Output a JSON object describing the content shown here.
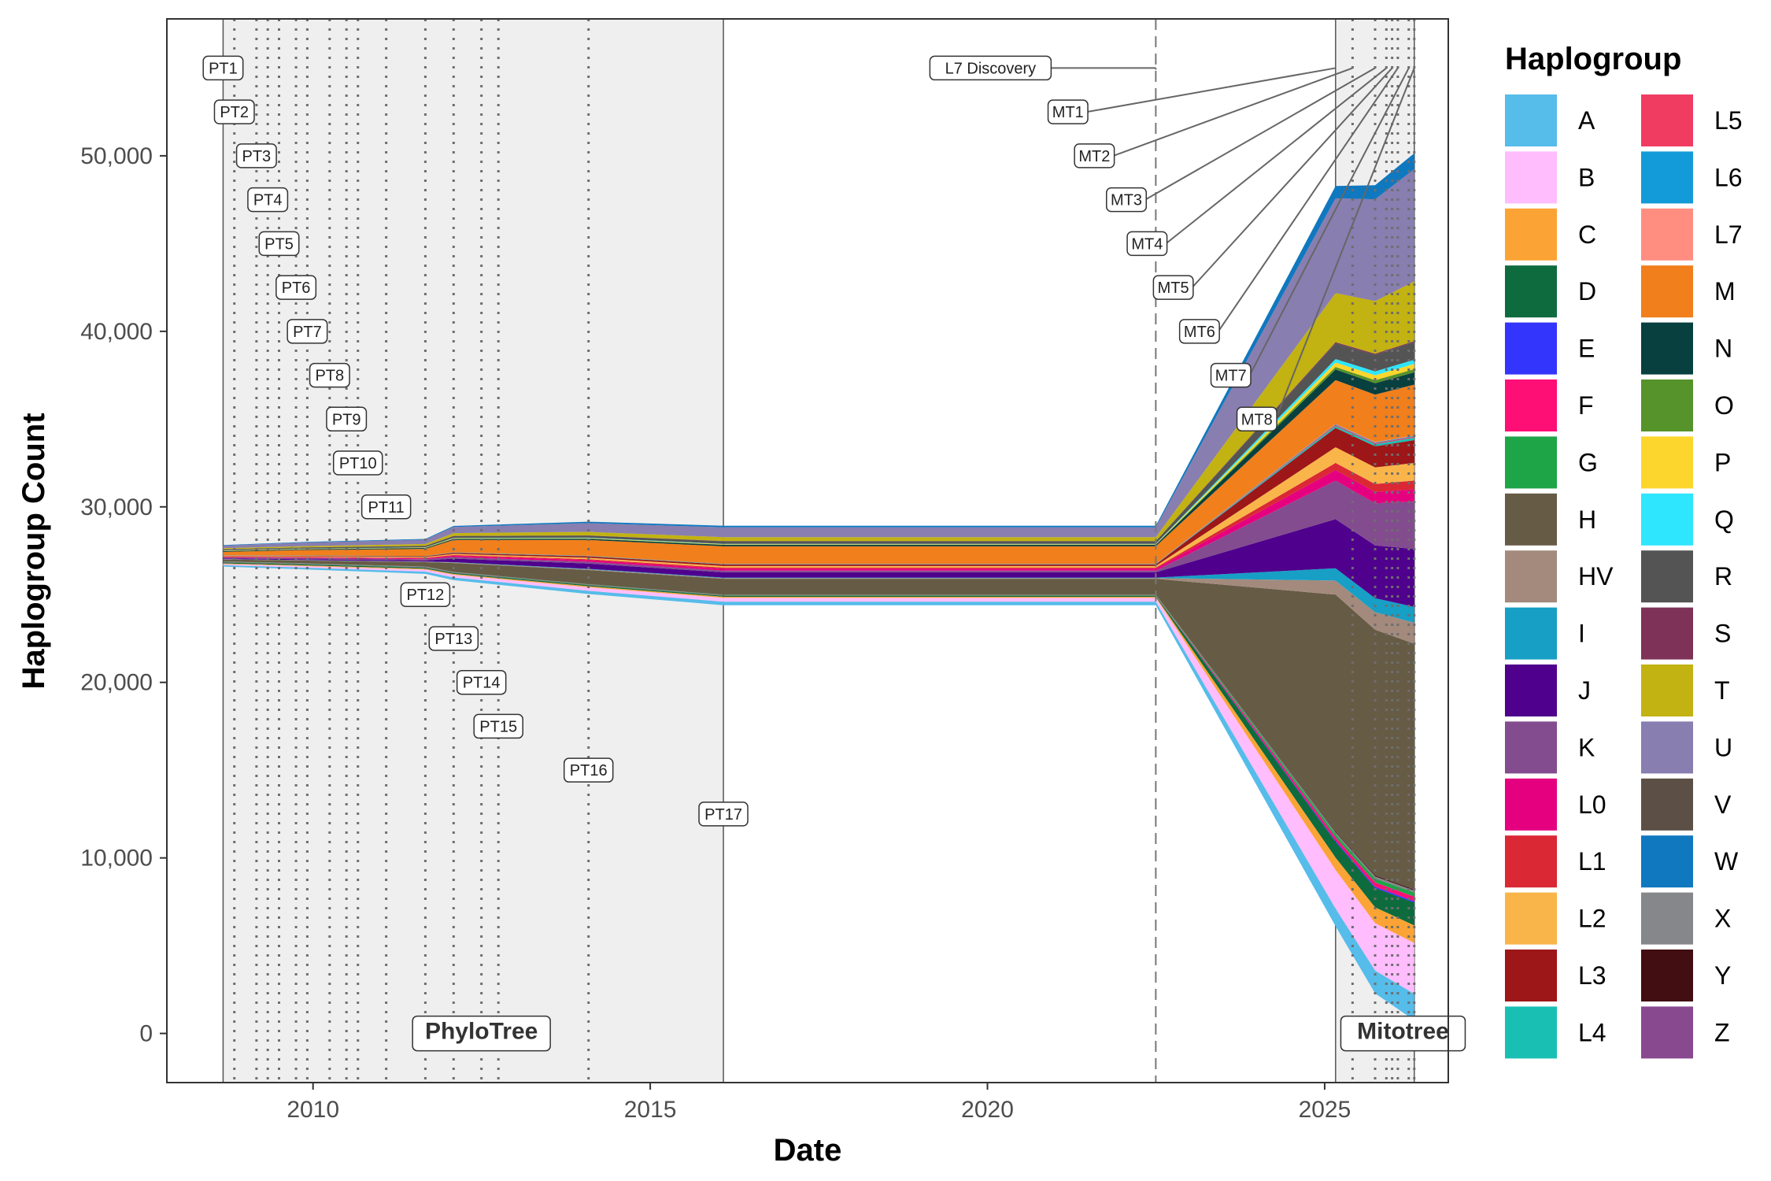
{
  "chart_data": {
    "type": "area",
    "subtype": "stacked streamgraph over release dates",
    "title": "",
    "xlabel": "Date",
    "ylabel": "Haplogroup Count",
    "xlim": [
      "2007-11-01",
      "2026-11-01"
    ],
    "ylim": [
      -2800,
      57800
    ],
    "x_ticks": [
      {
        "date": "2010-01-01",
        "label": "2010"
      },
      {
        "date": "2015-01-01",
        "label": "2015"
      },
      {
        "date": "2020-01-01",
        "label": "2020"
      },
      {
        "date": "2025-01-01",
        "label": "2025"
      }
    ],
    "y_ticks": [
      {
        "value": 0,
        "label": "0"
      },
      {
        "value": 10000,
        "label": "10,000"
      },
      {
        "value": 20000,
        "label": "20,000"
      },
      {
        "value": 30000,
        "label": "30,000"
      },
      {
        "value": 40000,
        "label": "40,000"
      },
      {
        "value": 50000,
        "label": "50,000"
      }
    ],
    "grid": false,
    "legend": {
      "title": "Haplogroup",
      "position": "right",
      "columns": 2
    },
    "series": [
      {
        "name": "A",
        "color": "#56BCEA"
      },
      {
        "name": "B",
        "color": "#FFBDFD"
      },
      {
        "name": "C",
        "color": "#FBA435"
      },
      {
        "name": "D",
        "color": "#0E6B3E"
      },
      {
        "name": "E",
        "color": "#3335FD"
      },
      {
        "name": "F",
        "color": "#FE0F76"
      },
      {
        "name": "G",
        "color": "#1EA548"
      },
      {
        "name": "H",
        "color": "#665B45"
      },
      {
        "name": "HV",
        "color": "#A38A7D"
      },
      {
        "name": "I",
        "color": "#179FC5"
      },
      {
        "name": "J",
        "color": "#4F008C"
      },
      {
        "name": "K",
        "color": "#834C8F"
      },
      {
        "name": "L0",
        "color": "#E5007F"
      },
      {
        "name": "L1",
        "color": "#DA2834"
      },
      {
        "name": "L2",
        "color": "#FAB54A"
      },
      {
        "name": "L3",
        "color": "#9D1618"
      },
      {
        "name": "L4",
        "color": "#1ABFB4"
      },
      {
        "name": "L5",
        "color": "#F13C62"
      },
      {
        "name": "L6",
        "color": "#129BD8"
      },
      {
        "name": "L7",
        "color": "#FF8E81"
      },
      {
        "name": "M",
        "color": "#F07F1C"
      },
      {
        "name": "N",
        "color": "#083F3F"
      },
      {
        "name": "O",
        "color": "#56932A"
      },
      {
        "name": "P",
        "color": "#FDD62D"
      },
      {
        "name": "Q",
        "color": "#2EE6FE"
      },
      {
        "name": "R",
        "color": "#545454"
      },
      {
        "name": "S",
        "color": "#7E3258"
      },
      {
        "name": "T",
        "color": "#C2B212"
      },
      {
        "name": "U",
        "color": "#887EB0"
      },
      {
        "name": "V",
        "color": "#5C4F45"
      },
      {
        "name": "W",
        "color": "#1078BF"
      },
      {
        "name": "X",
        "color": "#86878B"
      },
      {
        "name": "Y",
        "color": "#420E12"
      },
      {
        "name": "Z",
        "color": "#89498F"
      }
    ],
    "release_dates": [
      {
        "label": "PT1",
        "date": "2008-09-01",
        "y": 55000
      },
      {
        "label": "PT2",
        "date": "2008-11-01",
        "y": 52500
      },
      {
        "label": "PT3",
        "date": "2009-03-01",
        "y": 50000
      },
      {
        "label": "PT4",
        "date": "2009-05-01",
        "y": 47500
      },
      {
        "label": "PT5",
        "date": "2009-07-01",
        "y": 45000
      },
      {
        "label": "PT6",
        "date": "2009-10-01",
        "y": 42500
      },
      {
        "label": "PT7",
        "date": "2009-12-01",
        "y": 40000
      },
      {
        "label": "PT8",
        "date": "2010-04-01",
        "y": 37500
      },
      {
        "label": "PT9",
        "date": "2010-07-01",
        "y": 35000
      },
      {
        "label": "PT10",
        "date": "2010-09-01",
        "y": 32500
      },
      {
        "label": "PT11",
        "date": "2011-02-01",
        "y": 30000
      },
      {
        "label": "PT12",
        "date": "2011-09-01",
        "y": 25000
      },
      {
        "label": "PT13",
        "date": "2012-02-01",
        "y": 22500
      },
      {
        "label": "PT14",
        "date": "2012-07-01",
        "y": 20000
      },
      {
        "label": "PT15",
        "date": "2012-10-01",
        "y": 17500
      },
      {
        "label": "PT16",
        "date": "2014-02-01",
        "y": 15000
      },
      {
        "label": "PT17",
        "date": "2016-02-01",
        "y": 12500
      },
      {
        "label": "MT1",
        "date": "2025-03-01",
        "y": 52500
      },
      {
        "label": "MT2",
        "date": "2025-06-01",
        "y": 50000
      },
      {
        "label": "MT3",
        "date": "2025-10-01",
        "y": 47500
      },
      {
        "label": "MT4",
        "date": "2025-12-01",
        "y": 45000
      },
      {
        "label": "MT5",
        "date": "2026-01-01",
        "y": 42500
      },
      {
        "label": "MT6",
        "date": "2026-02-01",
        "y": 40000
      },
      {
        "label": "MT7",
        "date": "2026-04-01",
        "y": 37500
      },
      {
        "label": "MT8",
        "date": "2026-05-01",
        "y": 35000
      }
    ],
    "eras": [
      {
        "label": "PhyloTree",
        "start": "2008-09-01",
        "end": "2016-02-01"
      },
      {
        "label": "Mitotree",
        "start": "2025-03-01",
        "end": "2026-05-01"
      }
    ],
    "events": [
      {
        "label": "L7 Discovery",
        "date": "2022-07-01",
        "y": 55000
      }
    ]
  }
}
